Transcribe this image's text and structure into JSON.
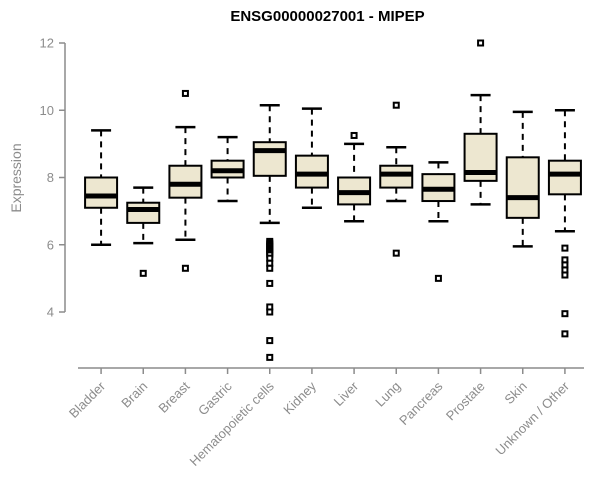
{
  "page": {
    "background": "#ffffff"
  },
  "chart_data": {
    "type": "boxplot",
    "title": "ENSG00000027001 - MIPEP",
    "ylabel": "Expression",
    "xlabel": "",
    "ylim": [
      4,
      12
    ],
    "yticks": [
      4,
      6,
      8,
      10,
      12
    ],
    "grid": false,
    "legend": "none",
    "categories": [
      "Bladder",
      "Brain",
      "Breast",
      "Gastric",
      "Hematopoietic cells",
      "Kidney",
      "Liver",
      "Lung",
      "Pancreas",
      "Prostate",
      "Skin",
      "Unknown / Other"
    ],
    "series": [
      {
        "name": "Bladder",
        "whisker_low": 6.0,
        "q1": 7.1,
        "median": 7.45,
        "q3": 8.0,
        "whisker_high": 9.4,
        "outliers": []
      },
      {
        "name": "Brain",
        "whisker_low": 6.05,
        "q1": 6.65,
        "median": 7.05,
        "q3": 7.25,
        "whisker_high": 7.7,
        "outliers": [
          5.15
        ]
      },
      {
        "name": "Breast",
        "whisker_low": 6.15,
        "q1": 7.4,
        "median": 7.8,
        "q3": 8.35,
        "whisker_high": 9.5,
        "outliers": [
          10.5,
          5.3
        ]
      },
      {
        "name": "Gastric",
        "whisker_low": 7.3,
        "q1": 8.0,
        "median": 8.2,
        "q3": 8.5,
        "whisker_high": 9.2,
        "outliers": []
      },
      {
        "name": "Hematopoietic cells",
        "whisker_low": 6.65,
        "q1": 8.05,
        "median": 8.8,
        "q3": 9.05,
        "whisker_high": 10.15,
        "outliers": [
          6.1,
          6.05,
          6.0,
          5.95,
          5.9,
          5.85,
          5.8,
          5.75,
          5.7,
          5.6,
          5.45,
          5.3,
          4.85,
          4.15,
          4.0,
          3.15,
          2.65
        ]
      },
      {
        "name": "Kidney",
        "whisker_low": 7.1,
        "q1": 7.7,
        "median": 8.1,
        "q3": 8.65,
        "whisker_high": 10.05,
        "outliers": []
      },
      {
        "name": "Liver",
        "whisker_low": 6.7,
        "q1": 7.2,
        "median": 7.55,
        "q3": 8.0,
        "whisker_high": 9.0,
        "outliers": [
          9.25
        ]
      },
      {
        "name": "Lung",
        "whisker_low": 7.3,
        "q1": 7.7,
        "median": 8.1,
        "q3": 8.35,
        "whisker_high": 8.9,
        "outliers": [
          10.15,
          5.75
        ]
      },
      {
        "name": "Pancreas",
        "whisker_low": 6.7,
        "q1": 7.3,
        "median": 7.65,
        "q3": 8.1,
        "whisker_high": 8.45,
        "outliers": [
          5.0
        ]
      },
      {
        "name": "Prostate",
        "whisker_low": 7.2,
        "q1": 7.9,
        "median": 8.15,
        "q3": 9.3,
        "whisker_high": 10.45,
        "outliers": [
          12.0
        ]
      },
      {
        "name": "Skin",
        "whisker_low": 5.95,
        "q1": 6.8,
        "median": 7.4,
        "q3": 8.6,
        "whisker_high": 9.95,
        "outliers": []
      },
      {
        "name": "Unknown / Other",
        "whisker_low": 6.4,
        "q1": 7.5,
        "median": 8.1,
        "q3": 8.5,
        "whisker_high": 10.0,
        "outliers": [
          5.9,
          5.55,
          5.4,
          5.25,
          5.1,
          3.95,
          3.35
        ]
      }
    ],
    "colors": {
      "box_fill": "#ede7d0",
      "box_border": "#000000",
      "median": "#000000",
      "whisker": "#000000",
      "outlier": "#000000",
      "axis": "#8c8c8c",
      "tick_label": "#8c8c8c",
      "title": "#000000"
    }
  }
}
